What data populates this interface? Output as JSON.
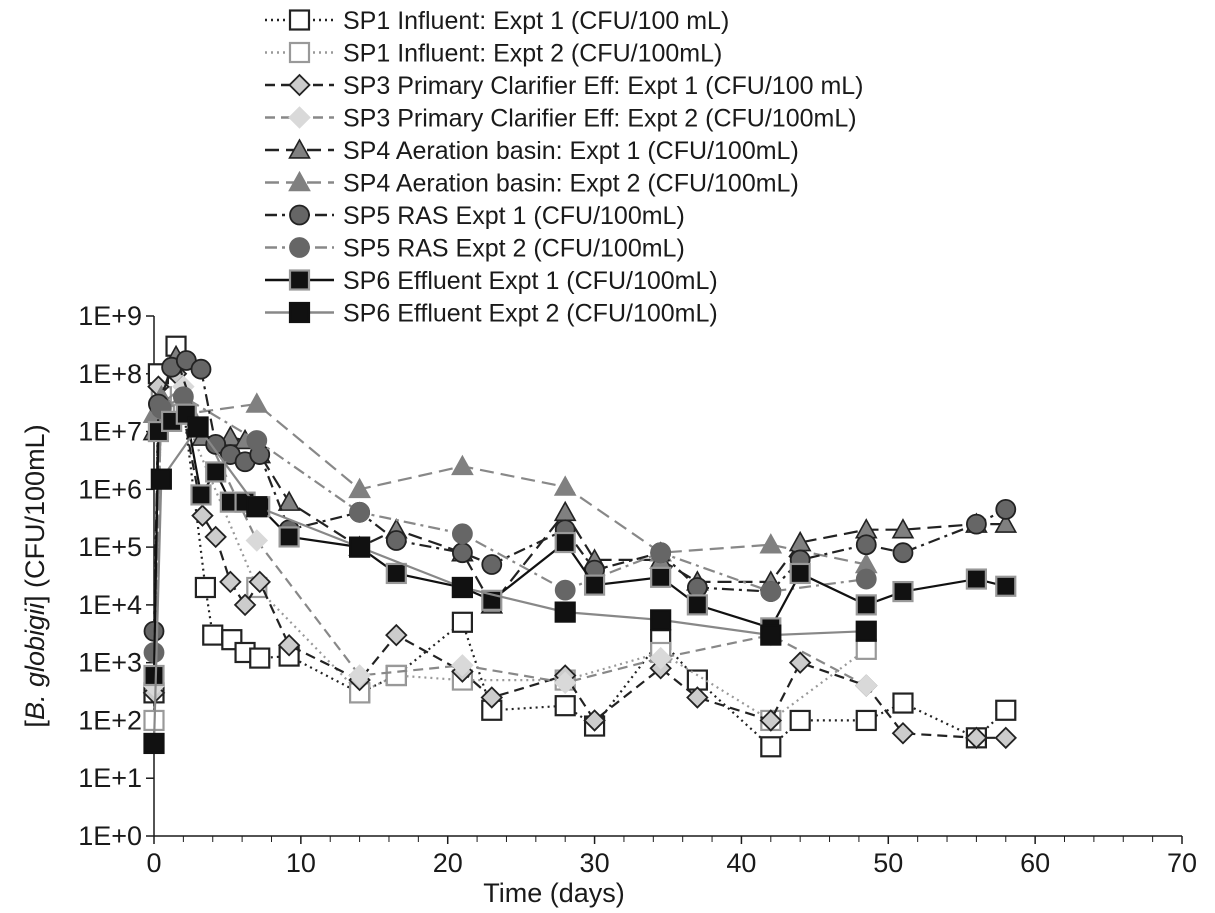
{
  "chart_data": {
    "type": "line",
    "xlabel": "Time (days)",
    "ylabel_parts": [
      "[",
      "B. globigii",
      "] (CFU/100mL)"
    ],
    "xlim": [
      0,
      70
    ],
    "xticks": [
      0,
      10,
      20,
      30,
      40,
      50,
      60,
      70
    ],
    "xtick_labels": [
      "0",
      "10",
      "20",
      "30",
      "40",
      "50",
      "60",
      "70"
    ],
    "yscale": "log",
    "ylim": [
      1,
      1000000000
    ],
    "yticks": [
      1,
      10,
      100,
      1000,
      10000,
      100000,
      1000000,
      10000000,
      100000000,
      1000000000
    ],
    "ytick_labels": [
      "1E+0",
      "1E+1",
      "1E+2",
      "1E+3",
      "1E+4",
      "1E+5",
      "1E+6",
      "1E+7",
      "1E+8",
      "1E+9"
    ],
    "grid": false,
    "legend_position": "top",
    "series": [
      {
        "name": "SP1 Influent: Expt 1 (CFU/100 mL)",
        "line_color": "#222222",
        "dash": "dotted",
        "marker": "square",
        "marker_fill": "#ffffff",
        "marker_stroke": "#222222",
        "x": [
          0,
          0.3,
          1.5,
          3.5,
          4,
          5.3,
          6.2,
          7.2,
          9.2,
          14,
          16.5,
          21,
          23,
          28,
          30,
          34.5,
          37,
          42,
          44,
          48.5,
          51,
          56,
          58
        ],
        "y": [
          300,
          100000000,
          300000000,
          20000,
          3000,
          2500,
          1500,
          1200,
          1300,
          300,
          600,
          5000,
          150,
          180,
          80,
          2500,
          500,
          35,
          100,
          100,
          200,
          50,
          150
        ]
      },
      {
        "name": "SP1 Influent: Expt 2 (CFU/100mL)",
        "line_color": "#999999",
        "dash": "dotted",
        "marker": "square",
        "marker_fill": "#ffffff",
        "marker_stroke": "#999999",
        "x": [
          0,
          0.5,
          2,
          7,
          14,
          16.5,
          21,
          28,
          34.5,
          42,
          48.5
        ],
        "y": [
          100,
          40000000,
          20000000,
          20000,
          300,
          600,
          500,
          500,
          1500,
          100,
          1700
        ]
      },
      {
        "name": "SP3 Primary Clarifier Eff: Expt 1 (CFU/100 mL)",
        "line_color": "#222222",
        "dash": "dashed",
        "marker": "diamond",
        "marker_fill": "#cccccc",
        "marker_stroke": "#222222",
        "x": [
          0,
          0.3,
          1.5,
          3.3,
          4.2,
          5.2,
          6.2,
          7.2,
          9.2,
          14,
          16.5,
          21,
          23,
          28,
          30,
          34.5,
          37,
          42,
          44,
          48.5,
          51,
          56,
          58
        ],
        "y": [
          300,
          60000000,
          100000000,
          350000,
          150000,
          25000,
          10000,
          25000,
          2000,
          500,
          3000,
          700,
          250,
          600,
          100,
          800,
          250,
          100,
          1000,
          400,
          60,
          50,
          50
        ]
      },
      {
        "name": "SP3 Primary Clarifier Eff: Expt 2 (CFU/100mL)",
        "line_color": "#888888",
        "dash": "dashed",
        "marker": "diamond",
        "marker_fill": "#d9d9d9",
        "marker_stroke": "#d9d9d9",
        "x": [
          0,
          0.5,
          2,
          7,
          14,
          21,
          28,
          34.5,
          42,
          48.5
        ],
        "y": [
          400,
          30000000,
          60000000,
          130000,
          600,
          900,
          450,
          1200,
          3000,
          400
        ]
      },
      {
        "name": "SP4 Aeration basin:  Expt 1 (CFU/100mL)",
        "line_color": "#222222",
        "dash": "longdash",
        "marker": "triangle",
        "marker_fill": "#808080",
        "marker_stroke": "#222222",
        "x": [
          0,
          0.5,
          1.5,
          3.3,
          5.2,
          6.2,
          7.2,
          9.2,
          14,
          16.5,
          21,
          23,
          28,
          30,
          34.5,
          37,
          42,
          44,
          48.5,
          51,
          56,
          58
        ],
        "y": [
          10000000,
          40000000,
          200000000,
          8000000,
          8000000,
          7000000,
          4000000,
          600000,
          100000,
          200000,
          80000,
          10000,
          400000,
          60000,
          60000,
          25000,
          25000,
          120000,
          200000,
          200000,
          250000,
          250000
        ]
      },
      {
        "name": "SP4 Aeration basin:  Expt 2 (CFU/100mL)",
        "line_color": "#888888",
        "dash": "longdash",
        "marker": "triangle",
        "marker_fill": "#808080",
        "marker_stroke": "#808080",
        "x": [
          0,
          0.5,
          2,
          7,
          14,
          21,
          28,
          34.5,
          42,
          48.5
        ],
        "y": [
          20000000,
          40000000,
          20000000,
          30000000,
          1000000,
          2500000,
          1100000,
          80000,
          110000,
          50000
        ]
      },
      {
        "name": "SP5 RAS Expt 1 (CFU/100mL)",
        "line_color": "#222222",
        "dash": "dashdot",
        "marker": "circle",
        "marker_fill": "#666666",
        "marker_stroke": "#222222",
        "x": [
          0,
          0.3,
          1.2,
          2.2,
          3.2,
          4.2,
          5.2,
          6.2,
          7.2,
          9.2,
          14,
          16.5,
          21,
          23,
          28,
          30,
          34.5,
          37,
          42,
          44,
          48.5,
          51,
          56,
          58
        ],
        "y": [
          3500,
          30000000,
          130000000,
          170000000,
          120000000,
          6000000,
          4000000,
          3000000,
          4000000,
          200000,
          400000,
          130000,
          80000,
          50000,
          200000,
          40000,
          80000,
          20000,
          17000,
          60000,
          110000,
          80000,
          250000,
          450000
        ]
      },
      {
        "name": "SP5 RAS Expt 2 (CFU/100mL)",
        "line_color": "#888888",
        "dash": "dashdot",
        "marker": "circle",
        "marker_fill": "#666666",
        "marker_stroke": "#666666",
        "x": [
          0,
          0.5,
          2,
          7,
          14,
          21,
          28,
          34.5,
          42,
          48.5
        ],
        "y": [
          1500,
          25000000,
          40000000,
          7000000,
          400000,
          170000,
          18000,
          80000,
          17000,
          28000
        ]
      },
      {
        "name": "SP6 Effluent Expt 1 (CFU/100mL)",
        "line_color": "#111111",
        "dash": "solid",
        "marker": "square",
        "marker_fill": "#111111",
        "marker_stroke": "#999999",
        "x": [
          0,
          0.3,
          1.2,
          2.2,
          3.2,
          4.2,
          5.2,
          6.2,
          7.2,
          9.2,
          14,
          16.5,
          21,
          23,
          28,
          30,
          34.5,
          37,
          42,
          44,
          48.5,
          51,
          56,
          58
        ],
        "y": [
          600,
          10000000,
          15000000,
          20000000,
          800000,
          2000000,
          600000,
          600000,
          500000,
          150000,
          100000,
          35000,
          20000,
          12000,
          120000,
          22000,
          30000,
          10000,
          4000,
          35000,
          10000,
          17000,
          28000,
          21000
        ]
      },
      {
        "name": "SP6 Effluent Expt 2 (CFU/100mL)",
        "line_color": "#888888",
        "dash": "solid",
        "marker": "square",
        "marker_fill": "#111111",
        "marker_stroke": "#111111",
        "x": [
          0,
          0.5,
          3,
          7,
          14,
          21,
          28,
          34.5,
          42,
          48.5
        ],
        "y": [
          40,
          1500000,
          12000000,
          500000,
          100000,
          20000,
          7500,
          5500,
          3000,
          3500
        ]
      }
    ]
  }
}
